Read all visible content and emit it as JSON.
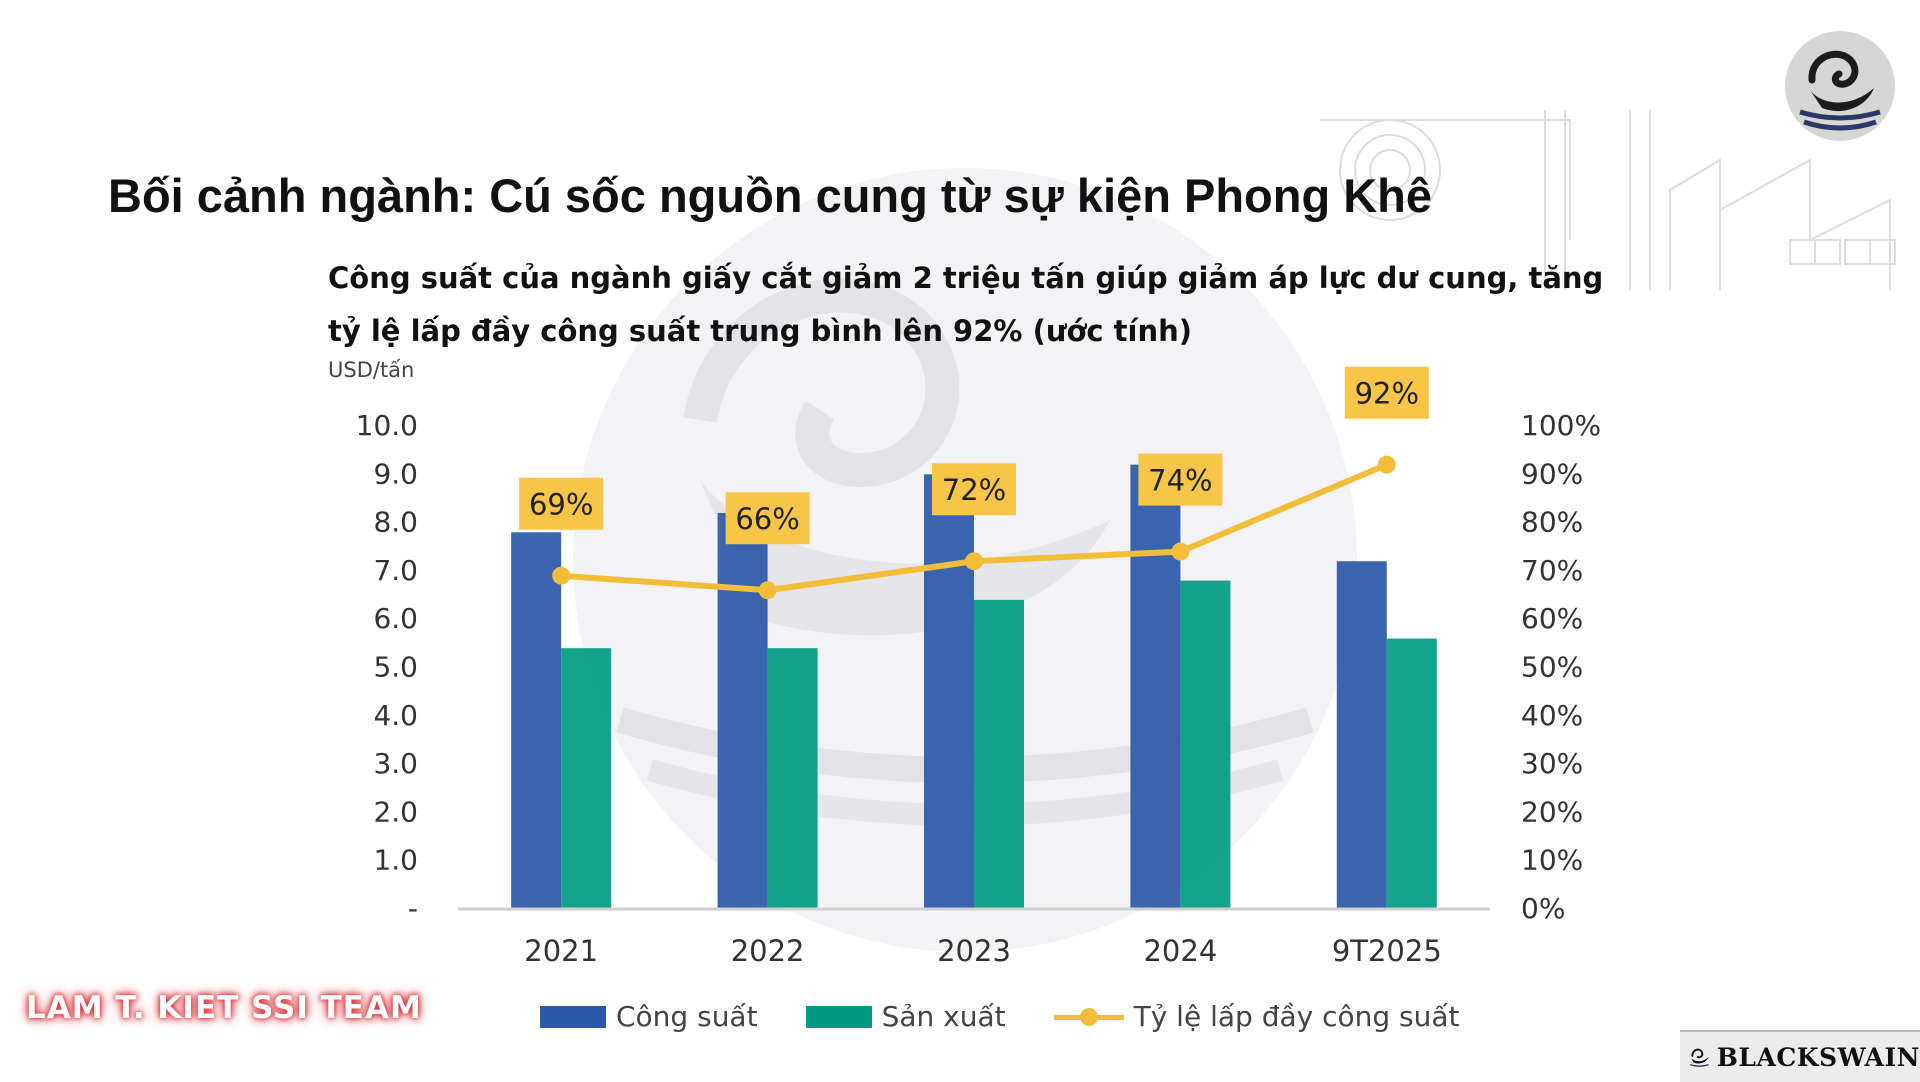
{
  "slide": {
    "title": "Bối cảnh ngành: Cú sốc nguồn cung từ sự kiện Phong Khê",
    "team_mark": "LAM T. KIET SSI TEAM",
    "brand": "BLACKSWAIN"
  },
  "colors": {
    "capacity": "#2B58A8",
    "production": "#009B82",
    "utilization": "#F2BE3A",
    "label_box": "#F7C547"
  },
  "chart_data": {
    "type": "bar",
    "title": "Công suất của ngành giấy cắt giảm 2 triệu tấn giúp giảm áp lực dư cung, tăng tỷ lệ lấp đầy công suất trung bình lên 92% (ước tính)",
    "ylabel": "USD/tấn",
    "categories": [
      "2021",
      "2022",
      "2023",
      "2024",
      "9T2025"
    ],
    "series": [
      {
        "name": "Công suất",
        "kind": "bar",
        "axis": "left",
        "values": [
          7.8,
          8.2,
          9.0,
          9.2,
          7.2
        ]
      },
      {
        "name": "Sản xuất",
        "kind": "bar",
        "axis": "left",
        "values": [
          5.4,
          5.4,
          6.4,
          6.8,
          5.6
        ]
      },
      {
        "name": "Tỷ lệ lấp đầy công suất",
        "kind": "line",
        "axis": "right",
        "values": [
          69,
          66,
          72,
          74,
          92
        ],
        "labels": [
          "69%",
          "66%",
          "72%",
          "74%",
          "92%"
        ]
      }
    ],
    "ylim": [
      0,
      10
    ],
    "y2lim": [
      0,
      100
    ],
    "yticks": [
      "-",
      "1.0",
      "2.0",
      "3.0",
      "4.0",
      "5.0",
      "6.0",
      "7.0",
      "8.0",
      "9.0",
      "10.0"
    ],
    "y2ticks": [
      "0%",
      "10%",
      "20%",
      "30%",
      "40%",
      "50%",
      "60%",
      "70%",
      "80%",
      "90%",
      "100%"
    ],
    "grid": false,
    "legend": "bottom"
  }
}
